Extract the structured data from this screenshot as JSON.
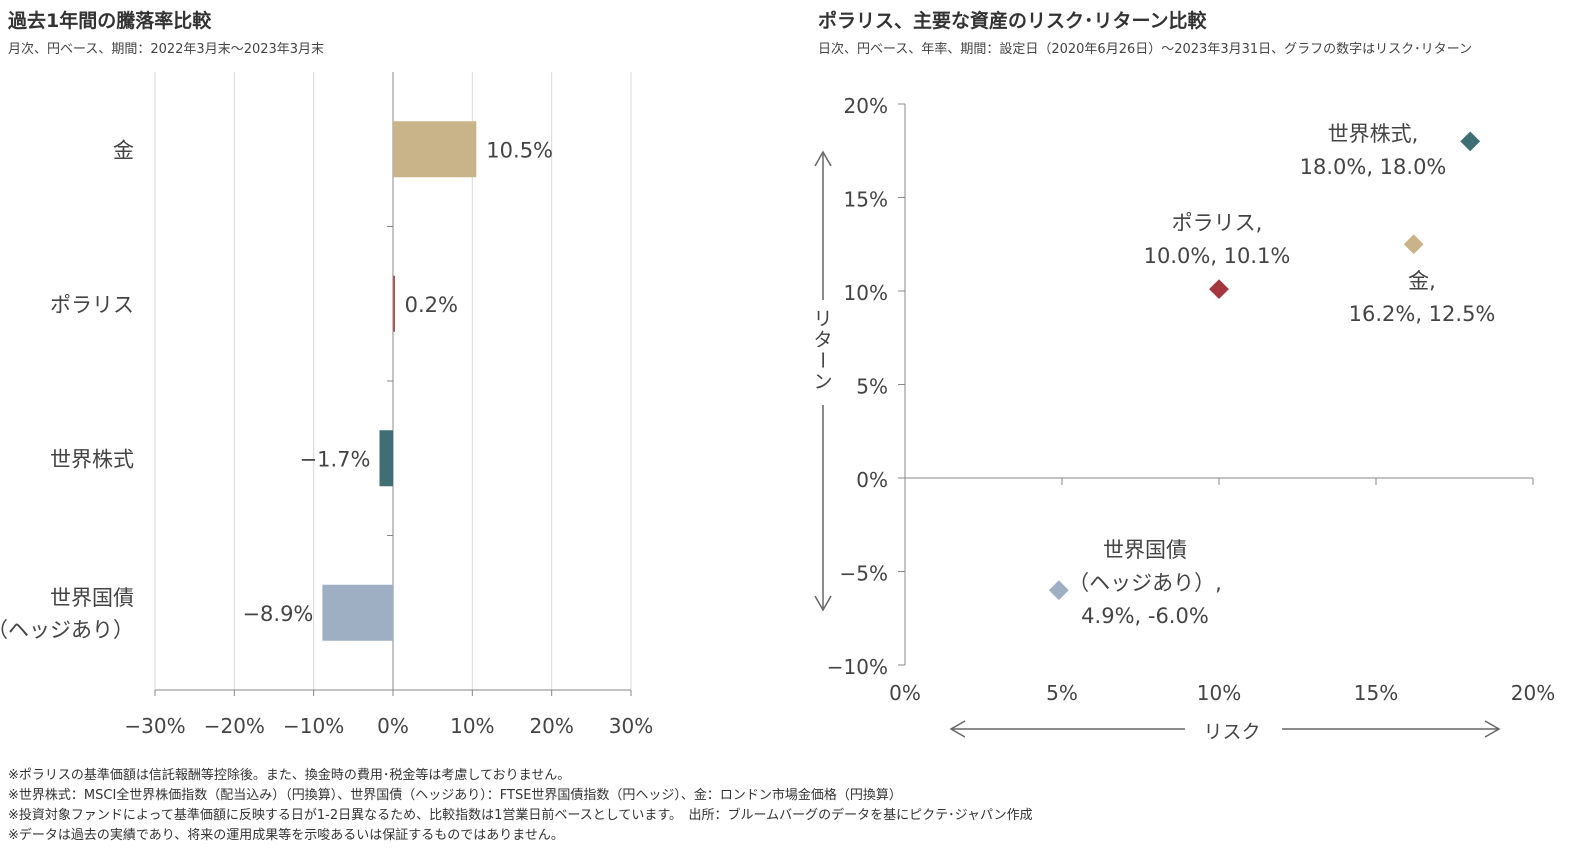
{
  "chart_data": [
    {
      "type": "bar",
      "orientation": "horizontal",
      "title": "過去1年間の騰落率比較",
      "subtitle": "月次、円ベース、期間：2022年3月末～2023年3月末",
      "categories": [
        "金",
        "ポラリス",
        "世界株式",
        "世界国債\n（ヘッジあり）"
      ],
      "values": [
        10.5,
        0.2,
        -1.7,
        -8.9
      ],
      "data_labels": [
        "10.5%",
        "0.2%",
        "-1.7%",
        "-8.9%"
      ],
      "colors": [
        "#c9b48a",
        "#a8585f",
        "#3f6f74",
        "#9eafc4"
      ],
      "xlim": [
        -30,
        30
      ],
      "xticks": [
        "-30%",
        "-20%",
        "-10%",
        "0%",
        "10%",
        "20%",
        "30%"
      ],
      "grid": true
    },
    {
      "type": "scatter",
      "title": "ポラリス、主要な資産のリスク･リターン比較",
      "subtitle": "日次、円ベース、年率、期間：設定日（2020年6月26日）～2023年3月31日、グラフの数字はリスク･リターン",
      "xlabel": "リスク",
      "ylabel": "リターン",
      "xlim": [
        0,
        20
      ],
      "ylim": [
        -10,
        20
      ],
      "xticks": [
        "0%",
        "5%",
        "10%",
        "15%",
        "20%"
      ],
      "yticks": [
        "-10%",
        "-5%",
        "0%",
        "5%",
        "10%",
        "15%",
        "20%"
      ],
      "points": [
        {
          "name": "世界株式,",
          "label": "18.0%, 18.0%",
          "x": 18.0,
          "y": 18.0,
          "color": "#3f6f74"
        },
        {
          "name": "金,",
          "label": "16.2%, 12.5%",
          "x": 16.2,
          "y": 12.5,
          "color": "#c9b48a"
        },
        {
          "name": "ポラリス,",
          "label": "10.0%, 10.1%",
          "x": 10.0,
          "y": 10.1,
          "color": "#a3373d"
        },
        {
          "name": "世界国債\n（ヘッジあり）,",
          "label": "4.9%, -6.0%",
          "x": 4.9,
          "y": -6.0,
          "color": "#9eafc4"
        }
      ]
    }
  ],
  "notes": [
    "※ポラリスの基準価額は信託報酬等控除後。また、換金時の費用･税金等は考慮しておりません。",
    "※世界株式：MSCI全世界株価指数（配当込み）（円換算）、世界国債（ヘッジあり）：FTSE世界国債指数（円ヘッジ）、金：ロンドン市場金価格（円換算）",
    "※投資対象ファンドによって基準価額に反映する日が1-2日異なるため、比較指数は1営業日前ベースとしています。　出所：ブルームバーグのデータを基にピクテ･ジャパン作成",
    "※データは過去の実績であり、将来の運用成果等を示唆あるいは保証するものではありません。"
  ]
}
